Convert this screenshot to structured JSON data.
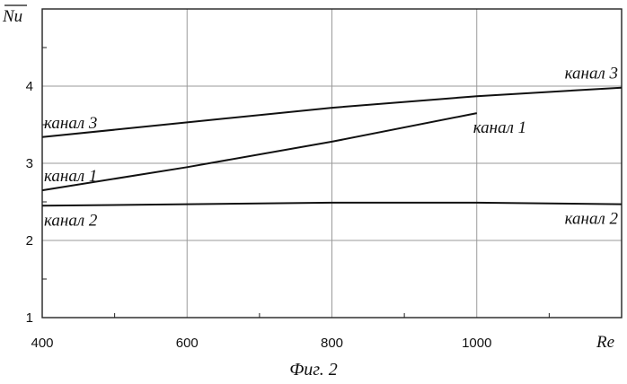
{
  "chart_data": {
    "type": "line",
    "title": "",
    "caption": "Фиг. 2",
    "xlabel": "Re",
    "ylabel": "Nu",
    "xlim": [
      400,
      1200
    ],
    "ylim": [
      1,
      5
    ],
    "x_ticks": [
      "400",
      "600",
      "800",
      "1000"
    ],
    "y_ticks": [
      "1",
      "2",
      "3",
      "4"
    ],
    "grid": true,
    "series": [
      {
        "name": "канал 1",
        "x": [
          400,
          600,
          800,
          1000
        ],
        "y": [
          2.65,
          2.95,
          3.28,
          3.65
        ]
      },
      {
        "name": "канал 2",
        "x": [
          400,
          600,
          800,
          1000,
          1200
        ],
        "y": [
          2.45,
          2.47,
          2.49,
          2.49,
          2.47
        ]
      },
      {
        "name": "канал 3",
        "x": [
          400,
          600,
          800,
          1000,
          1200
        ],
        "y": [
          3.34,
          3.53,
          3.72,
          3.87,
          3.98
        ]
      }
    ],
    "labels": [
      {
        "text": "канал 3",
        "series": "канал 3",
        "end": "start"
      },
      {
        "text": "канал 3",
        "series": "канал 3",
        "end": "end"
      },
      {
        "text": "канал 1",
        "series": "канал 1",
        "end": "start"
      },
      {
        "text": "канал 1",
        "series": "канал 1",
        "end": "end"
      },
      {
        "text": "канал 2",
        "series": "канал 2",
        "end": "start"
      },
      {
        "text": "канал 2",
        "series": "канал 2",
        "end": "end"
      }
    ]
  }
}
